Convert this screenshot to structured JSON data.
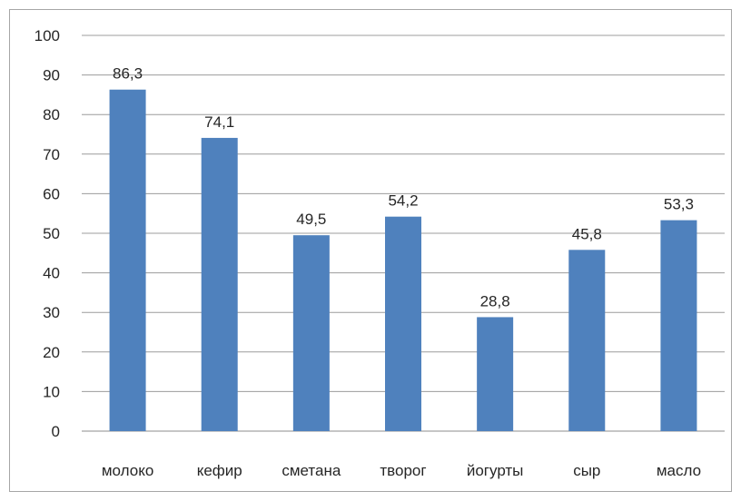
{
  "chart_data": {
    "type": "bar",
    "categories": [
      "молоко",
      "кефир",
      "сметана",
      "творог",
      "йогурты",
      "сыр",
      "масло"
    ],
    "values": [
      86.3,
      74.1,
      49.5,
      54.2,
      28.8,
      45.8,
      53.3
    ],
    "value_labels": [
      "86,3",
      "74,1",
      "49,5",
      "54,2",
      "28,8",
      "45,8",
      "53,3"
    ],
    "y_ticks": [
      "0",
      "10",
      "20",
      "30",
      "40",
      "50",
      "60",
      "70",
      "80",
      "90",
      "100"
    ],
    "ylim": [
      0,
      100
    ],
    "grid": true,
    "legend": "none",
    "bar_color": "#4f81bd"
  }
}
